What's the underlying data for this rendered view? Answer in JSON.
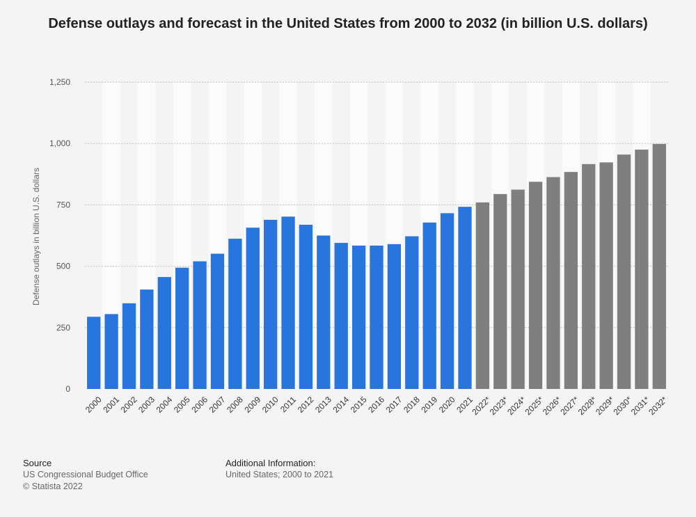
{
  "title": "Defense outlays and forecast in the United States from 2000 to 2032 (in billion U.S. dollars)",
  "source": {
    "heading": "Source",
    "line1": "US Congressional Budget Office",
    "line2": "© Statista 2022"
  },
  "additional_info": {
    "heading": "Additional Information:",
    "line1": "United States; 2000 to 2021"
  },
  "colors": {
    "actual": "#2876dd",
    "forecast": "#7f7f7f",
    "band": "#fbfbfb",
    "grid": "#bdbdbd"
  },
  "chart_data": {
    "type": "bar",
    "ylabel": "Defense outlays in billion U.S. dollars",
    "xlabel": "",
    "ylim": [
      0,
      1250
    ],
    "yticks": [
      0,
      250,
      500,
      750,
      1000,
      1250
    ],
    "ytick_labels": [
      "0",
      "250",
      "500",
      "750",
      "1,000",
      "1,250"
    ],
    "grid": true,
    "categories": [
      "2000",
      "2001",
      "2002",
      "2003",
      "2004",
      "2005",
      "2006",
      "2007",
      "2008",
      "2009",
      "2010",
      "2011",
      "2012",
      "2013",
      "2014",
      "2015",
      "2016",
      "2017",
      "2018",
      "2019",
      "2020",
      "2021",
      "2022*",
      "2023*",
      "2024*",
      "2025*",
      "2026*",
      "2027*",
      "2028*",
      "2029*",
      "2030*",
      "2031*",
      "2032*"
    ],
    "values": [
      294,
      305,
      349,
      405,
      456,
      494,
      520,
      551,
      612,
      657,
      689,
      702,
      669,
      625,
      595,
      584,
      584,
      590,
      622,
      678,
      716,
      742,
      760,
      794,
      812,
      844,
      863,
      884,
      916,
      923,
      955,
      975,
      998
    ],
    "forecast_start_index": 22
  }
}
